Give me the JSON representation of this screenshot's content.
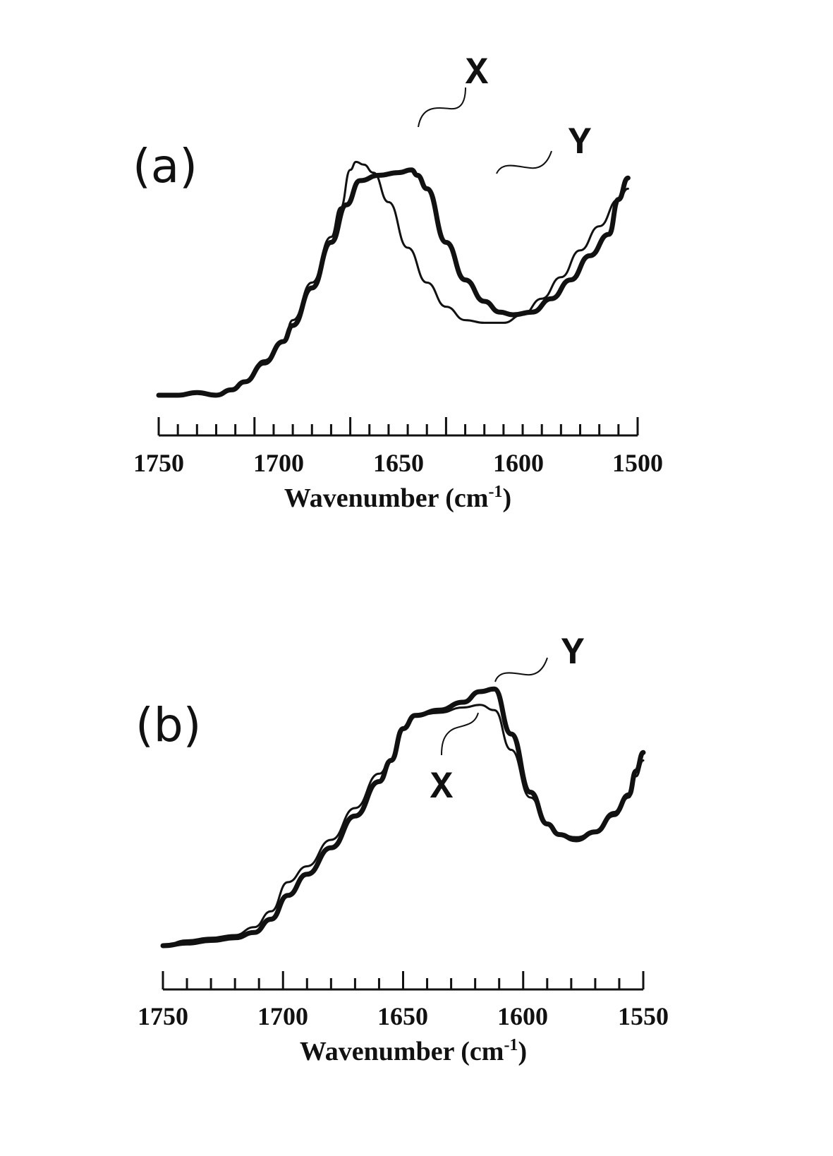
{
  "chart_data": [
    {
      "panel": "(a)",
      "type": "line",
      "xlabel": "Wavenumber (cm",
      "xlabel_sup": "-1",
      "xlabel_close": ")",
      "xlim": [
        1750,
        1500
      ],
      "xticks": [
        1750,
        1700,
        1650,
        1600,
        1500
      ],
      "ylim": [
        0,
        1
      ],
      "yaxis_shown": false,
      "series": [
        {
          "name": "X",
          "style": "thin",
          "x": [
            1750,
            1740,
            1730,
            1720,
            1712,
            1705,
            1695,
            1685,
            1680,
            1670,
            1660,
            1655,
            1650,
            1647,
            1643,
            1638,
            1630,
            1620,
            1610,
            1600,
            1590,
            1580,
            1570,
            1560,
            1550,
            1540,
            1530,
            1520,
            1510,
            1505
          ],
          "y": [
            0.0,
            0.0,
            0.01,
            0.0,
            0.02,
            0.05,
            0.13,
            0.2,
            0.28,
            0.42,
            0.59,
            0.7,
            0.84,
            0.87,
            0.86,
            0.83,
            0.72,
            0.55,
            0.42,
            0.33,
            0.28,
            0.27,
            0.27,
            0.3,
            0.36,
            0.44,
            0.54,
            0.63,
            0.73,
            0.77
          ]
        },
        {
          "name": "Y",
          "style": "thick",
          "x": [
            1750,
            1740,
            1730,
            1720,
            1712,
            1705,
            1695,
            1685,
            1680,
            1670,
            1660,
            1652,
            1645,
            1635,
            1625,
            1618,
            1615,
            1610,
            1600,
            1590,
            1580,
            1572,
            1565,
            1555,
            1545,
            1535,
            1525,
            1515,
            1510,
            1505
          ],
          "y": [
            0.0,
            0.0,
            0.01,
            0.0,
            0.02,
            0.05,
            0.12,
            0.2,
            0.26,
            0.4,
            0.57,
            0.71,
            0.8,
            0.82,
            0.83,
            0.84,
            0.82,
            0.77,
            0.57,
            0.43,
            0.35,
            0.31,
            0.3,
            0.31,
            0.36,
            0.43,
            0.52,
            0.6,
            0.73,
            0.81
          ]
        }
      ],
      "annotations": [
        {
          "text": "X",
          "series": "X"
        },
        {
          "text": "Y",
          "series": "Y"
        }
      ]
    },
    {
      "panel": "(b)",
      "type": "line",
      "xlabel": "Wavenumber (cm",
      "xlabel_sup": "-1",
      "xlabel_close": ")",
      "xlim": [
        1750,
        1550
      ],
      "xticks": [
        1750,
        1700,
        1650,
        1600,
        1550
      ],
      "ylim": [
        0,
        1
      ],
      "yaxis_shown": false,
      "series": [
        {
          "name": "X",
          "style": "thin",
          "x": [
            1750,
            1740,
            1730,
            1720,
            1712,
            1705,
            1698,
            1690,
            1680,
            1670,
            1660,
            1655,
            1650,
            1645,
            1635,
            1625,
            1618,
            1612,
            1605,
            1597,
            1590,
            1585,
            1578,
            1570,
            1562,
            1556,
            1553,
            1550
          ],
          "y": [
            0.0,
            0.02,
            0.03,
            0.04,
            0.07,
            0.13,
            0.24,
            0.3,
            0.4,
            0.52,
            0.65,
            0.7,
            0.82,
            0.87,
            0.88,
            0.9,
            0.91,
            0.89,
            0.74,
            0.56,
            0.46,
            0.42,
            0.41,
            0.43,
            0.49,
            0.56,
            0.64,
            0.7
          ]
        },
        {
          "name": "Y",
          "style": "thick",
          "x": [
            1750,
            1740,
            1730,
            1720,
            1712,
            1705,
            1698,
            1690,
            1680,
            1670,
            1660,
            1655,
            1650,
            1645,
            1635,
            1625,
            1618,
            1612,
            1605,
            1597,
            1590,
            1585,
            1578,
            1570,
            1562,
            1556,
            1553,
            1550
          ],
          "y": [
            0.0,
            0.01,
            0.02,
            0.03,
            0.05,
            0.1,
            0.19,
            0.27,
            0.37,
            0.49,
            0.62,
            0.7,
            0.82,
            0.87,
            0.89,
            0.92,
            0.96,
            0.97,
            0.8,
            0.58,
            0.46,
            0.42,
            0.4,
            0.43,
            0.5,
            0.57,
            0.66,
            0.73
          ]
        }
      ],
      "annotations": [
        {
          "text": "Y",
          "series": "Y"
        },
        {
          "text": "X",
          "series": "X"
        }
      ]
    }
  ]
}
